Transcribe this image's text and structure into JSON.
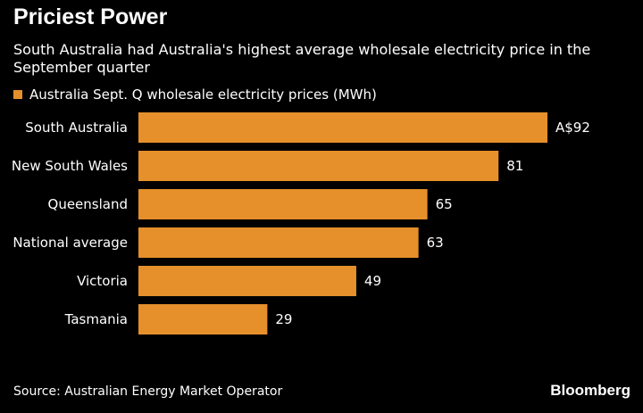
{
  "header": {
    "title": "Priciest Power",
    "subtitle": "South Australia had Australia's highest average wholesale electricity price in the September quarter"
  },
  "legend": {
    "label": "Australia Sept. Q wholesale electricity prices (MWh)"
  },
  "colors": {
    "bar": "#e5902b",
    "background": "#000000",
    "text": "#ffffff"
  },
  "chart_data": {
    "type": "bar",
    "orientation": "horizontal",
    "categories": [
      "South Australia",
      "New South Wales",
      "Queensland",
      "National average",
      "Victoria",
      "Tasmania"
    ],
    "values": [
      92,
      81,
      65,
      63,
      49,
      29
    ],
    "value_labels": [
      "A$92",
      "81",
      "65",
      "63",
      "49",
      "29"
    ],
    "series": [
      {
        "name": "Australia Sept. Q wholesale electricity prices (MWh)",
        "values": [
          92,
          81,
          65,
          63,
          49,
          29
        ]
      }
    ],
    "xlim": [
      0,
      92
    ],
    "grid": false,
    "legend_position": "top-left"
  },
  "footer": {
    "source": "Source: Australian Energy Market Operator",
    "brand": "Bloomberg"
  }
}
